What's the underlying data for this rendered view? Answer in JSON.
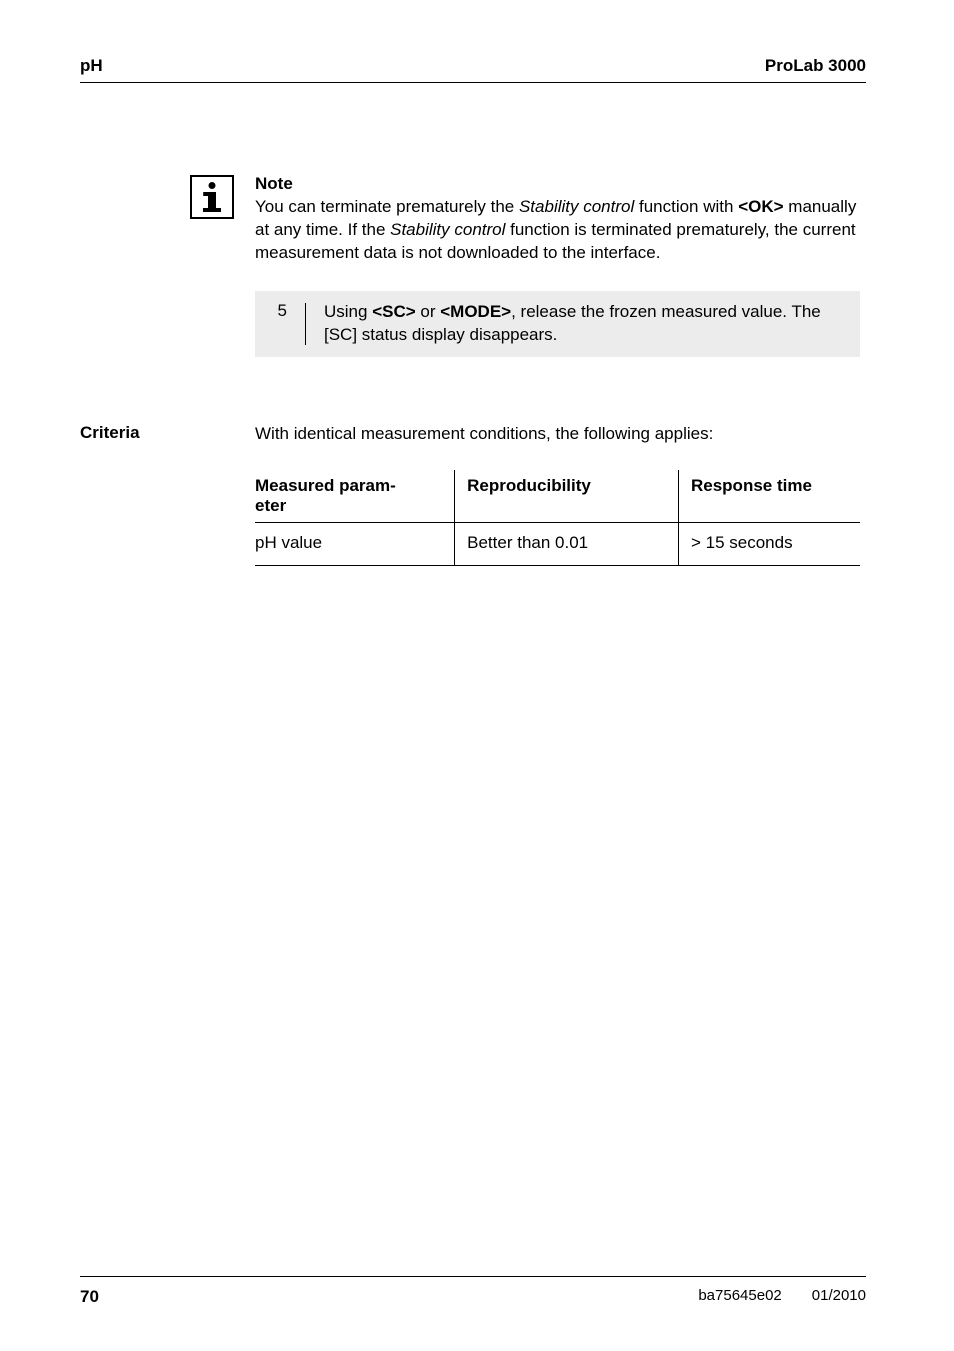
{
  "header": {
    "left": "pH",
    "right": "ProLab 3000"
  },
  "note": {
    "heading": "Note",
    "text_parts": {
      "t1": "You can terminate prematurely the ",
      "i1": "Stability control",
      "t2": " function with ",
      "b1": "<OK>",
      "t3": " manually at any time. If the ",
      "i2": "Stability control",
      "t4": " function is terminated prematurely, the current measurement data is not downloaded to the interface."
    }
  },
  "step": {
    "num": "5",
    "parts": {
      "t1": "Using ",
      "b1": "<SC>",
      "t2": " or ",
      "b2": "<MODE>",
      "t3": ", release the frozen measured value. The [SC] status display disappears."
    }
  },
  "criteria": {
    "label": "Criteria",
    "intro": "With identical measurement conditions, the following applies:",
    "table": {
      "headers": {
        "c1a": "Measured param-",
        "c1b": "eter",
        "c2": "Reproducibility",
        "c3": "Response time"
      },
      "row": {
        "c1": "pH value",
        "c2": "Better than 0.01",
        "c3": "> 15 seconds"
      }
    }
  },
  "footer": {
    "page": "70",
    "doc": "ba75645e02",
    "date": "01/2010"
  }
}
